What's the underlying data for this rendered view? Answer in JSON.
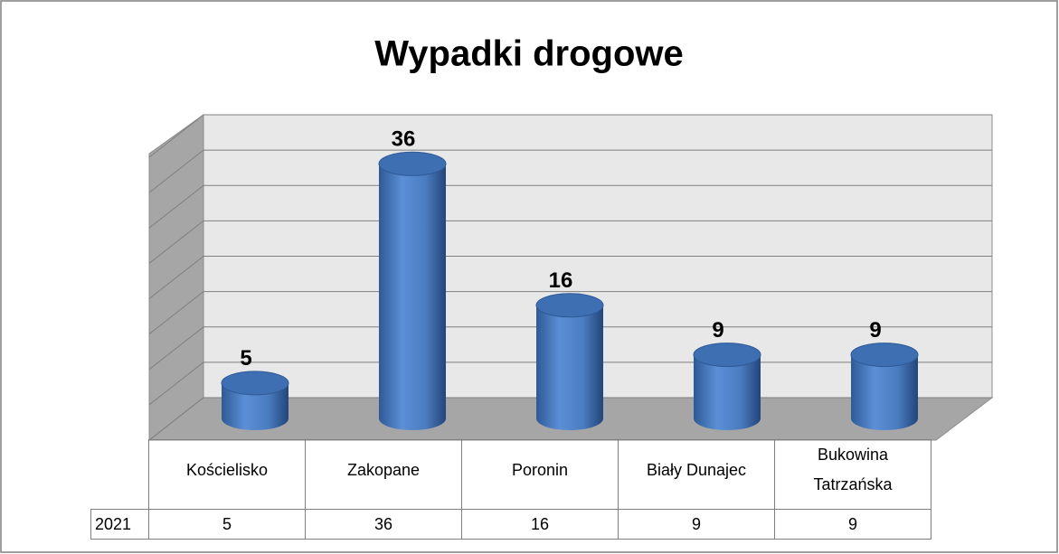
{
  "chart_data": {
    "type": "bar",
    "title": "Wypadki drogowe",
    "categories": [
      "Kościelisko",
      "Zakopane",
      "Poronin",
      "Biały Dunajec",
      "Bukowina Tatrzańska"
    ],
    "series": [
      {
        "name": "2021",
        "color": "#4f81bd",
        "values": [
          5,
          36,
          16,
          9,
          9
        ]
      }
    ],
    "ylim": [
      0,
      40
    ],
    "yticks": [
      0,
      5,
      10,
      15,
      20,
      25,
      30,
      35,
      40
    ],
    "grid": true
  }
}
